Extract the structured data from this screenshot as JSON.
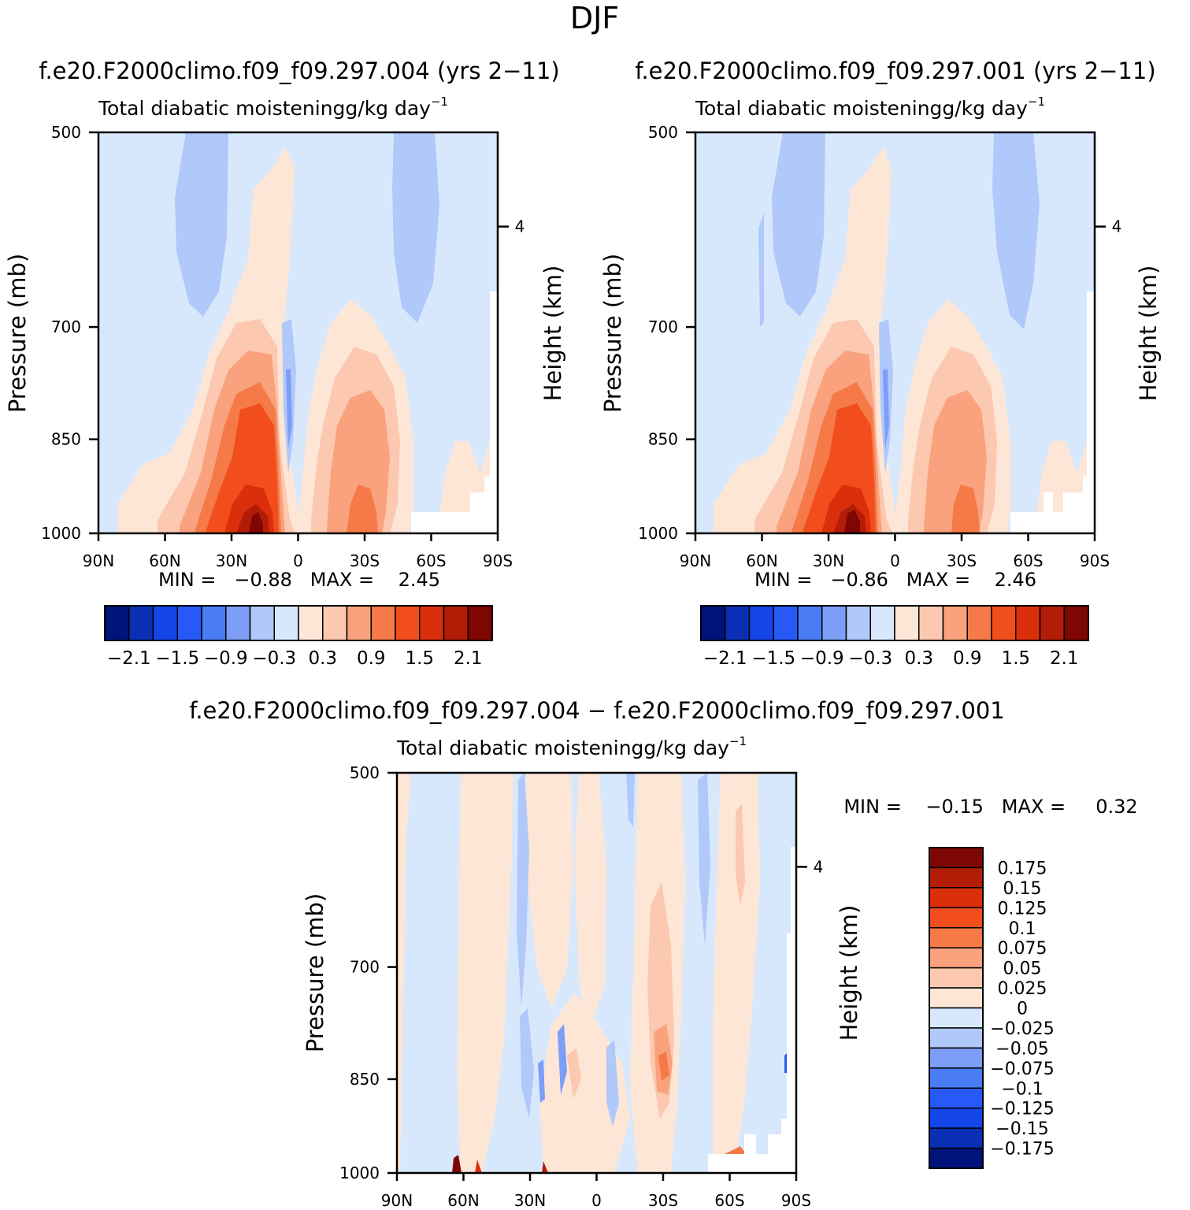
{
  "figure": {
    "title": "DJF"
  },
  "chart_data": [
    {
      "type": "heatmap",
      "panel": "model-a",
      "case_title": "f.e20.F2000climo.f09_f09.297.004 (yrs 2−11)",
      "title": "Total diabatic moisteningg/kg day",
      "title_unit_exponent": "−1",
      "ylabel": "Pressure (mb)",
      "y2label": "Height (km)",
      "xlabel": "",
      "x_ticks": [
        "90N",
        "60N",
        "30N",
        "0",
        "30S",
        "60S",
        "90S"
      ],
      "y_ticks": [
        "500",
        "700",
        "850",
        "1000"
      ],
      "y2_ticks": [
        "4"
      ],
      "ylim": [
        1000,
        500
      ],
      "xlim": [
        90,
        -90
      ],
      "stats_text": "MIN =   −0.88   MAX =    2.45",
      "min": -0.88,
      "max": 2.45,
      "colorbar_labels": [
        "−2.1",
        "−1.5",
        "−0.9",
        "−0.3",
        "0.3",
        "0.9",
        "1.5",
        "2.1"
      ],
      "features": [
        {
          "kind": "moistening",
          "lat": 18,
          "p_peak": 1000,
          "value": 2.45
        },
        {
          "kind": "moistening",
          "lat": -25,
          "p_peak": 930,
          "value": 1.4
        },
        {
          "kind": "drying",
          "lat": 42,
          "p": 580,
          "value": -0.4
        },
        {
          "kind": "drying",
          "lat": -48,
          "p": 600,
          "value": -0.4
        },
        {
          "kind": "drying",
          "lat": 3,
          "p": 850,
          "value": -0.6
        }
      ]
    },
    {
      "type": "heatmap",
      "panel": "model-b",
      "case_title": "f.e20.F2000climo.f09_f09.297.001 (yrs 2−11)",
      "title": "Total diabatic moisteningg/kg day",
      "title_unit_exponent": "−1",
      "ylabel": "Pressure (mb)",
      "y2label": "Height (km)",
      "xlabel": "",
      "x_ticks": [
        "90N",
        "60N",
        "30N",
        "0",
        "30S",
        "60S",
        "90S"
      ],
      "y_ticks": [
        "500",
        "700",
        "850",
        "1000"
      ],
      "y2_ticks": [
        "4"
      ],
      "ylim": [
        1000,
        500
      ],
      "xlim": [
        90,
        -90
      ],
      "stats_text": "MIN =   −0.86   MAX =    2.46",
      "min": -0.86,
      "max": 2.46,
      "colorbar_labels": [
        "−2.1",
        "−1.5",
        "−0.9",
        "−0.3",
        "0.3",
        "0.9",
        "1.5",
        "2.1"
      ],
      "features": [
        {
          "kind": "moistening",
          "lat": 18,
          "p_peak": 1000,
          "value": 2.46
        },
        {
          "kind": "moistening",
          "lat": -28,
          "p_peak": 930,
          "value": 1.5
        },
        {
          "kind": "drying",
          "lat": 42,
          "p": 580,
          "value": -0.4
        },
        {
          "kind": "drying",
          "lat": -50,
          "p": 600,
          "value": -0.4
        },
        {
          "kind": "drying",
          "lat": 3,
          "p": 850,
          "value": -0.6
        }
      ]
    },
    {
      "type": "heatmap",
      "panel": "difference",
      "case_title": "f.e20.F2000climo.f09_f09.297.004 − f.e20.F2000climo.f09_f09.297.001",
      "title": "Total diabatic moisteningg/kg day",
      "title_unit_exponent": "−1",
      "ylabel": "Pressure (mb)",
      "y2label": "Height (km)",
      "xlabel": "",
      "x_ticks": [
        "90N",
        "60N",
        "30N",
        "0",
        "30S",
        "60S",
        "90S"
      ],
      "y_ticks": [
        "500",
        "700",
        "850",
        "1000"
      ],
      "y2_ticks": [
        "4"
      ],
      "ylim": [
        1000,
        500
      ],
      "xlim": [
        90,
        -90
      ],
      "stats_text": "MIN =    −0.15   MAX =     0.32",
      "min": -0.15,
      "max": 0.32,
      "colorbar_labels": [
        "0.175",
        "0.15",
        "0.125",
        "0.1",
        "0.075",
        "0.05",
        "0.025",
        "0",
        "−0.025",
        "−0.05",
        "−0.075",
        "−0.1",
        "−0.125",
        "−0.15",
        "−0.175"
      ],
      "features": [
        {
          "kind": "positive",
          "lat": -30,
          "p_peak": 880,
          "value": 0.12
        },
        {
          "kind": "positive",
          "lat": 62,
          "p_peak": 1000,
          "value": 0.32
        },
        {
          "kind": "negative",
          "lat": 45,
          "p": 750,
          "value": -0.05
        },
        {
          "kind": "negative",
          "lat": -45,
          "p": 650,
          "value": -0.05
        }
      ]
    }
  ],
  "palettes": {
    "full": [
      "#00137a",
      "#0a2fb4",
      "#1446e8",
      "#2759f8",
      "#4a7cf5",
      "#7c9ef7",
      "#b0c8fa",
      "#d8e8fc",
      "#fde6d6",
      "#fcc8af",
      "#f9a27d",
      "#f57a48",
      "#f24e1d",
      "#db2f0b",
      "#b31d08",
      "#7e0603"
    ],
    "diff": [
      "#7e0603",
      "#b31d08",
      "#db2f0b",
      "#f24e1d",
      "#f57a48",
      "#f9a27d",
      "#fcc8af",
      "#fde6d6",
      "#d8e8fc",
      "#b0c8fa",
      "#7c9ef7",
      "#4a7cf5",
      "#2759f8",
      "#1446e8",
      "#0a2fb4",
      "#00137a"
    ],
    "axis_color": "#000000",
    "missing_color": "#ffffff"
  }
}
